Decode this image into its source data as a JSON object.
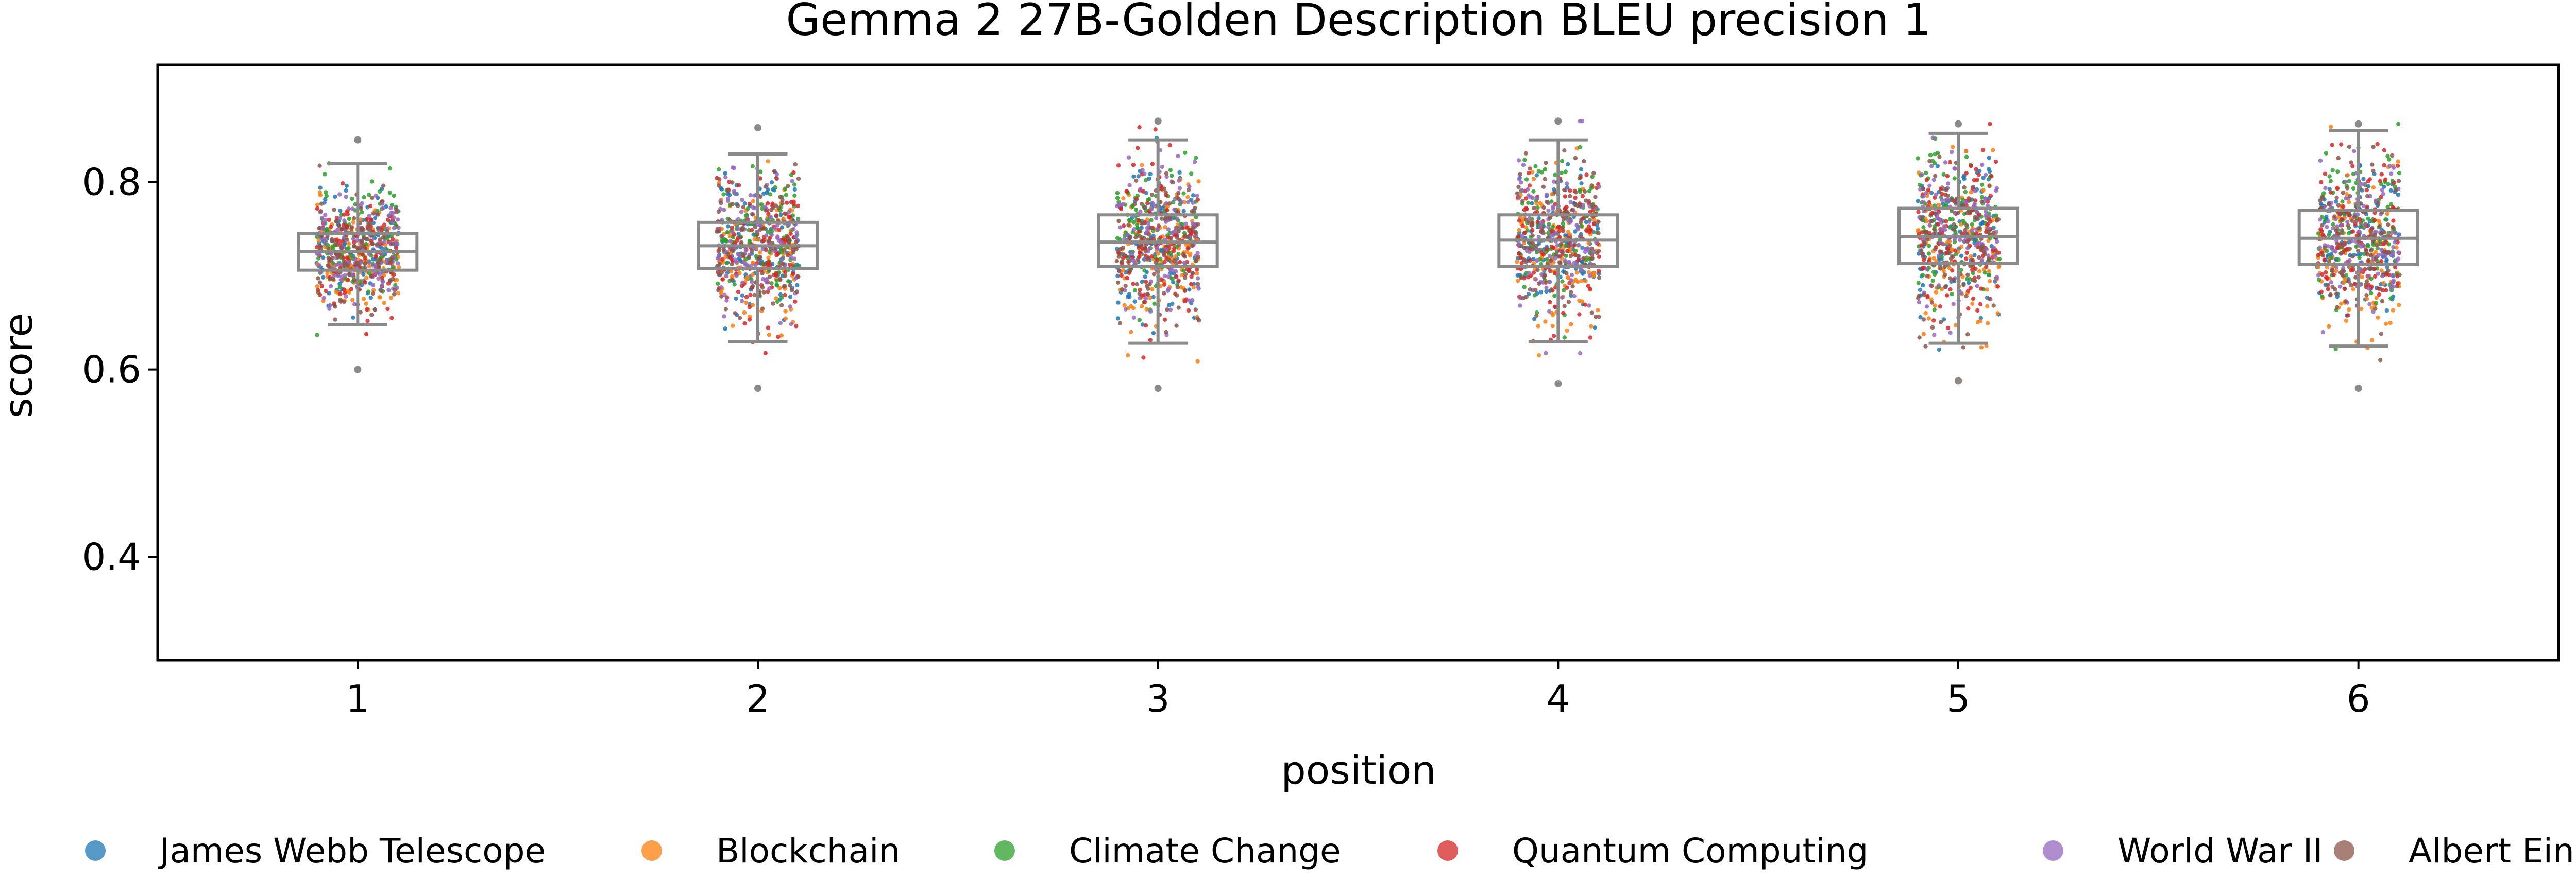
{
  "chart_data": {
    "type": "scatter",
    "title": "Gemma 2 27B-Golden Description BLEU precision 1",
    "xlabel": "position",
    "ylabel": "score",
    "x_categories": [
      "1",
      "2",
      "3",
      "4",
      "5",
      "6"
    ],
    "ylim": [
      0.29,
      0.925
    ],
    "yticks": [
      "0.4",
      "0.6",
      "0.8"
    ],
    "grid": false,
    "legend_position": "bottom",
    "series": [
      {
        "name": "James Webb Telescope",
        "color": "#1f77b4"
      },
      {
        "name": "Blockchain",
        "color": "#ff7f0e"
      },
      {
        "name": "Climate Change",
        "color": "#2ca02c"
      },
      {
        "name": "Quantum Computing",
        "color": "#d62728"
      },
      {
        "name": "World War II",
        "color": "#9467bd"
      },
      {
        "name": "Albert Einstein",
        "color": "#8c564b"
      }
    ],
    "boxplots": [
      {
        "position": "1",
        "whisker_low": 0.648,
        "q1": 0.706,
        "median": 0.726,
        "q3": 0.745,
        "whisker_high": 0.82,
        "min": 0.6,
        "max": 0.845
      },
      {
        "position": "2",
        "whisker_low": 0.63,
        "q1": 0.708,
        "median": 0.732,
        "q3": 0.757,
        "whisker_high": 0.83,
        "min": 0.58,
        "max": 0.858
      },
      {
        "position": "3",
        "whisker_low": 0.628,
        "q1": 0.71,
        "median": 0.736,
        "q3": 0.765,
        "whisker_high": 0.845,
        "min": 0.58,
        "max": 0.865
      },
      {
        "position": "4",
        "whisker_low": 0.63,
        "q1": 0.71,
        "median": 0.738,
        "q3": 0.765,
        "whisker_high": 0.845,
        "min": 0.585,
        "max": 0.865
      },
      {
        "position": "5",
        "whisker_low": 0.628,
        "q1": 0.713,
        "median": 0.742,
        "q3": 0.772,
        "whisker_high": 0.852,
        "min": 0.588,
        "max": 0.862
      },
      {
        "position": "6",
        "whisker_low": 0.625,
        "q1": 0.712,
        "median": 0.74,
        "q3": 0.77,
        "whisker_high": 0.855,
        "min": 0.58,
        "max": 0.862
      }
    ],
    "points_per_series_per_position": 110
  }
}
